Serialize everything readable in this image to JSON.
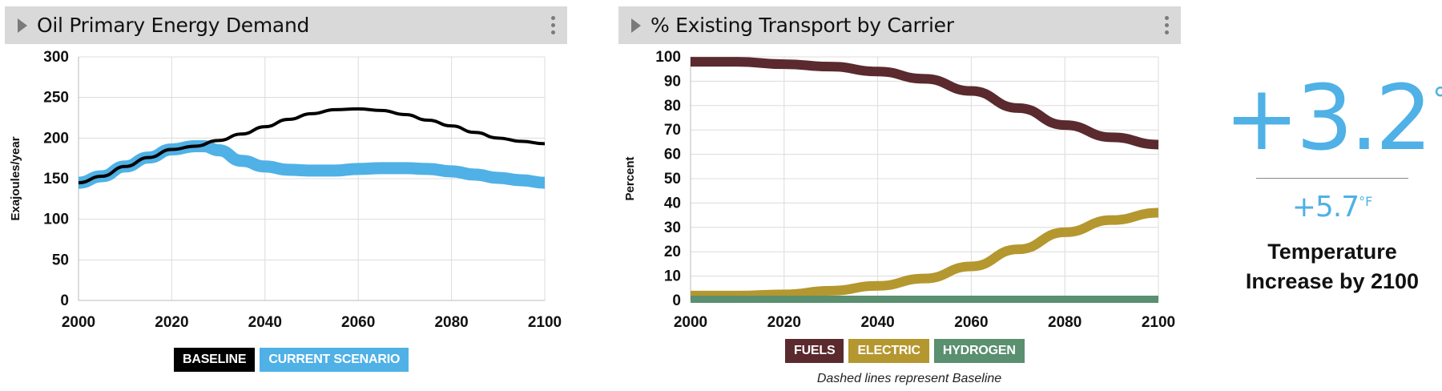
{
  "panels": [
    {
      "title": "Oil Primary Energy Demand"
    },
    {
      "title": "% Existing Transport by Carrier"
    }
  ],
  "chart_data": [
    {
      "type": "line",
      "title": "Oil Primary Energy Demand",
      "xlabel": "",
      "ylabel": "Exajoules/year",
      "xlim": [
        2000,
        2100
      ],
      "ylim": [
        0,
        300
      ],
      "xticks": [
        2000,
        2020,
        2040,
        2060,
        2080,
        2100
      ],
      "yticks": [
        0,
        50,
        100,
        150,
        200,
        250,
        300
      ],
      "grid": true,
      "legend_position": "bottom",
      "series": [
        {
          "name": "BASELINE",
          "color": "#000000",
          "x": [
            2000,
            2005,
            2010,
            2015,
            2020,
            2025,
            2030,
            2035,
            2040,
            2045,
            2050,
            2055,
            2060,
            2065,
            2070,
            2075,
            2080,
            2085,
            2090,
            2095,
            2100
          ],
          "y": [
            145,
            153,
            165,
            176,
            186,
            190,
            197,
            205,
            214,
            223,
            230,
            235,
            236,
            234,
            229,
            222,
            215,
            207,
            200,
            196,
            193
          ]
        },
        {
          "name": "CURRENT SCENARIO",
          "color": "#4fb1e6",
          "x": [
            2000,
            2005,
            2010,
            2015,
            2020,
            2025,
            2027,
            2030,
            2035,
            2040,
            2045,
            2050,
            2055,
            2060,
            2065,
            2070,
            2075,
            2080,
            2085,
            2090,
            2095,
            2100
          ],
          "y": [
            145,
            153,
            165,
            176,
            186,
            190,
            190,
            185,
            172,
            165,
            161,
            160,
            160,
            162,
            163,
            163,
            162,
            159,
            155,
            151,
            148,
            145
          ]
        }
      ]
    },
    {
      "type": "line",
      "title": "% Existing Transport by Carrier",
      "xlabel": "",
      "ylabel": "Percent",
      "xlim": [
        2000,
        2100
      ],
      "ylim": [
        0,
        100
      ],
      "xticks": [
        2000,
        2020,
        2040,
        2060,
        2080,
        2100
      ],
      "yticks": [
        0,
        10,
        20,
        30,
        40,
        50,
        60,
        70,
        80,
        90,
        100
      ],
      "grid": true,
      "legend_position": "bottom",
      "annotation": "Dashed lines represent Baseline",
      "series": [
        {
          "name": "FUELS",
          "color": "#5a2a2e",
          "x": [
            2000,
            2010,
            2020,
            2030,
            2040,
            2050,
            2060,
            2070,
            2080,
            2090,
            2100
          ],
          "y": [
            98,
            98,
            97,
            96,
            94,
            91,
            86,
            79,
            72,
            67,
            64
          ]
        },
        {
          "name": "ELECTRIC",
          "color": "#b5972f",
          "x": [
            2000,
            2010,
            2020,
            2030,
            2040,
            2050,
            2060,
            2070,
            2080,
            2090,
            2100
          ],
          "y": [
            2,
            2,
            2.5,
            4,
            6,
            9,
            14,
            21,
            28,
            33,
            36
          ]
        },
        {
          "name": "HYDROGEN",
          "color": "#5a8f70",
          "x": [
            2000,
            2010,
            2020,
            2030,
            2040,
            2050,
            2060,
            2070,
            2080,
            2090,
            2100
          ],
          "y": [
            0.5,
            0.5,
            0.5,
            0.5,
            0.5,
            0.5,
            0.5,
            0.5,
            0.5,
            0.5,
            0.5
          ]
        }
      ]
    }
  ],
  "temperature": {
    "celsius_value": "+3.2",
    "celsius_unit": "°C",
    "fahrenheit_value": "+5.7",
    "fahrenheit_unit": "°F",
    "label": "Temperature Increase by 2100",
    "color": "#4fb1e6"
  }
}
